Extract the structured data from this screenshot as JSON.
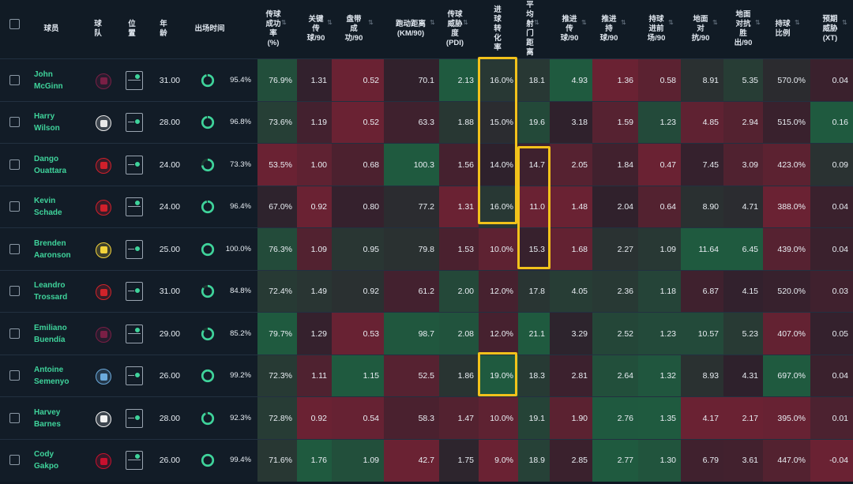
{
  "header": {
    "select_all_label": "",
    "columns": [
      {
        "key": "player",
        "label": "球员"
      },
      {
        "key": "club",
        "label": "球\n队"
      },
      {
        "key": "position",
        "label": "位\n置"
      },
      {
        "key": "age",
        "label": "年\n龄"
      },
      {
        "key": "minutes",
        "label": "出场时间"
      },
      {
        "key": "pass_pct",
        "label": "传球\n成功\n率\n(%)"
      },
      {
        "key": "key_passes",
        "label": "关键\n传\n球/90"
      },
      {
        "key": "dribbles",
        "label": "盘带\n成\n功/90"
      },
      {
        "key": "distance",
        "label": "跑动距离\n(KM/90)"
      },
      {
        "key": "pdi",
        "label": "传球\n威胁\n度\n(PDI)"
      },
      {
        "key": "conversion",
        "label": "进\n球\n转\n化\n率"
      },
      {
        "key": "shot_dist",
        "label": "平\n均\n射\n门\n距\n离"
      },
      {
        "key": "prog_pass",
        "label": "推进\n传\n球/90"
      },
      {
        "key": "prog_carry",
        "label": "推进\n持\n球/90"
      },
      {
        "key": "carry_ft",
        "label": "持球\n进前\n场/90"
      },
      {
        "key": "ground_duels",
        "label": "地面\n对\n抗/90"
      },
      {
        "key": "ground_won",
        "label": "地面\n对抗\n胜\n出/90"
      },
      {
        "key": "possession",
        "label": "持球\n比例"
      },
      {
        "key": "xt",
        "label": "预期\n威胁\n(XT)"
      }
    ]
  },
  "colors": {
    "accent": "#3fd39b",
    "highlight": "#f2c21b",
    "positive": "#1f5a3f",
    "negative": "#6a2233"
  },
  "players": [
    {
      "name": "John\nMcGinn",
      "club": "Aston Villa",
      "club_color": "#7a1f45",
      "age": "31.00",
      "minutes_pct": "95.4%",
      "ring": 0.954,
      "values": [
        "76.9%",
        "1.31",
        "0.52",
        "70.1",
        "2.13",
        "16.0%",
        "18.1",
        "4.93",
        "1.36",
        "0.58",
        "8.91",
        "5.35",
        "570.0%",
        "0.04"
      ]
    },
    {
      "name": "Harry\nWilson",
      "club": "Fulham",
      "club_color": "#e9e9e9",
      "age": "28.00",
      "minutes_pct": "96.8%",
      "ring": 0.968,
      "values": [
        "73.6%",
        "1.19",
        "0.52",
        "63.3",
        "1.88",
        "15.0%",
        "19.6",
        "3.18",
        "1.59",
        "1.23",
        "4.85",
        "2.94",
        "515.0%",
        "0.16"
      ]
    },
    {
      "name": "Dango\nOuattara",
      "club": "Brentford",
      "club_color": "#d0202b",
      "age": "24.00",
      "minutes_pct": "73.3%",
      "ring": 0.733,
      "values": [
        "53.5%",
        "1.00",
        "0.68",
        "100.3",
        "1.56",
        "14.0%",
        "14.7",
        "2.05",
        "1.84",
        "0.47",
        "7.45",
        "3.09",
        "423.0%",
        "0.09"
      ]
    },
    {
      "name": "Kevin\nSchade",
      "club": "Brentford",
      "club_color": "#d0202b",
      "age": "24.00",
      "minutes_pct": "96.4%",
      "ring": 0.964,
      "values": [
        "67.0%",
        "0.92",
        "0.80",
        "77.2",
        "1.31",
        "16.0%",
        "11.0",
        "1.48",
        "2.04",
        "0.64",
        "8.90",
        "4.71",
        "388.0%",
        "0.04"
      ]
    },
    {
      "name": "Brenden\nAaronson",
      "club": "Leeds United",
      "club_color": "#f3d33b",
      "age": "25.00",
      "minutes_pct": "100.0%",
      "ring": 1.0,
      "values": [
        "76.3%",
        "1.09",
        "0.95",
        "79.8",
        "1.53",
        "10.0%",
        "15.3",
        "1.68",
        "2.27",
        "1.09",
        "11.64",
        "6.45",
        "439.0%",
        "0.04"
      ]
    },
    {
      "name": "Leandro\nTrossard",
      "club": "Arsenal",
      "club_color": "#d2232a",
      "age": "31.00",
      "minutes_pct": "84.8%",
      "ring": 0.848,
      "values": [
        "72.4%",
        "1.49",
        "0.92",
        "61.2",
        "2.00",
        "12.0%",
        "17.8",
        "4.05",
        "2.36",
        "1.18",
        "6.87",
        "4.15",
        "520.0%",
        "0.03"
      ]
    },
    {
      "name": "Emiliano\nBuendía",
      "club": "Aston Villa",
      "club_color": "#7a1f45",
      "age": "29.00",
      "minutes_pct": "85.2%",
      "ring": 0.852,
      "values": [
        "79.7%",
        "1.29",
        "0.53",
        "98.7",
        "2.08",
        "12.0%",
        "21.1",
        "3.29",
        "2.52",
        "1.23",
        "10.57",
        "5.23",
        "407.0%",
        "0.05"
      ]
    },
    {
      "name": "Antoine\nSemenyo",
      "club": "Manchester City",
      "club_color": "#6cabdd",
      "age": "26.00",
      "minutes_pct": "99.2%",
      "ring": 0.992,
      "values": [
        "72.3%",
        "1.11",
        "1.15",
        "52.5",
        "1.86",
        "19.0%",
        "18.3",
        "2.81",
        "2.64",
        "1.32",
        "8.93",
        "4.31",
        "697.0%",
        "0.04"
      ]
    },
    {
      "name": "Harvey\nBarnes",
      "club": "Newcastle",
      "club_color": "#f2f2f2",
      "age": "28.00",
      "minutes_pct": "92.3%",
      "ring": 0.923,
      "values": [
        "72.8%",
        "0.92",
        "0.54",
        "58.3",
        "1.47",
        "10.0%",
        "19.1",
        "1.90",
        "2.76",
        "1.35",
        "4.17",
        "2.17",
        "395.0%",
        "0.01"
      ]
    },
    {
      "name": "Cody\nGakpo",
      "club": "Liverpool",
      "club_color": "#c8102e",
      "age": "26.00",
      "minutes_pct": "99.4%",
      "ring": 0.994,
      "values": [
        "71.6%",
        "1.76",
        "1.09",
        "42.7",
        "1.75",
        "9.0%",
        "18.9",
        "2.85",
        "2.77",
        "1.30",
        "6.79",
        "3.61",
        "447.0%",
        "-0.04"
      ]
    }
  ]
}
